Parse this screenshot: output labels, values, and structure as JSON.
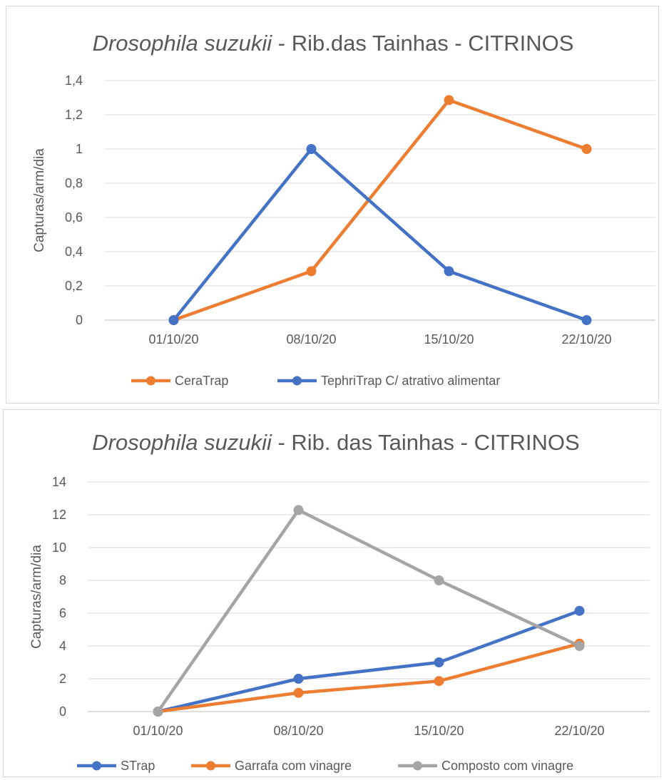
{
  "chart_data": [
    {
      "type": "line",
      "title_italic": "Drosophila suzukii",
      "title_rest": " - Rib.das Tainhas - CITRINOS",
      "xlabel": "",
      "ylabel": "Capturas/arm/dia",
      "categories": [
        "01/10/20",
        "08/10/20",
        "15/10/20",
        "22/10/20"
      ],
      "y_ticks": [
        "0",
        "0,2",
        "0,4",
        "0,6",
        "0,8",
        "1",
        "1,2",
        "1,4"
      ],
      "ylim": [
        0,
        1.4
      ],
      "grid": true,
      "legend_position": "bottom",
      "series": [
        {
          "name": "CeraTrap",
          "color": "#ed7d31",
          "values": [
            0,
            0.2857,
            1.2857,
            1.0
          ]
        },
        {
          "name": "TephriTrap C/ atrativo alimentar",
          "color": "#4472c4",
          "values": [
            0,
            1.0,
            0.2857,
            0
          ]
        }
      ]
    },
    {
      "type": "line",
      "title_italic": "Drosophila suzukii",
      "title_rest": " - Rib. das Tainhas - CITRINOS",
      "xlabel": "",
      "ylabel": "Capturas/arm/dia",
      "categories": [
        "01/10/20",
        "08/10/20",
        "15/10/20",
        "22/10/20"
      ],
      "y_ticks": [
        "0",
        "2",
        "4",
        "6",
        "8",
        "10",
        "12",
        "14"
      ],
      "ylim": [
        0,
        14
      ],
      "grid": true,
      "legend_position": "bottom",
      "series": [
        {
          "name": "STrap",
          "color": "#4472c4",
          "values": [
            0,
            2.0,
            3.0,
            6.14
          ]
        },
        {
          "name": "Garrafa com vinagre",
          "color": "#ed7d31",
          "values": [
            0,
            1.14,
            1.86,
            4.14
          ]
        },
        {
          "name": "Composto com vinagre",
          "color": "#a5a5a5",
          "values": [
            0,
            12.29,
            8.0,
            4.0
          ]
        }
      ]
    }
  ]
}
